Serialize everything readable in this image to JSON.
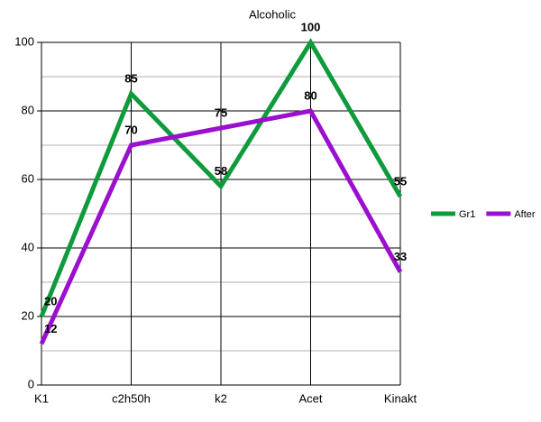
{
  "chart_data": {
    "type": "line",
    "title": "Alcoholic",
    "categories": [
      "K1",
      "c2h50h",
      "k2",
      "Acet",
      "Kinakt"
    ],
    "series": [
      {
        "name": "Gr1",
        "color": "#0f9a3c",
        "values": [
          20,
          85,
          58,
          100,
          55
        ]
      },
      {
        "name": "After",
        "color": "#9b0fcf",
        "values": [
          12,
          70,
          75,
          80,
          33
        ]
      }
    ],
    "ylim": [
      0,
      100
    ],
    "yticks": [
      0,
      20,
      40,
      60,
      80,
      100
    ],
    "minor_yticks": [
      10,
      30,
      50,
      70,
      90
    ],
    "grid": true,
    "legend": "right"
  }
}
